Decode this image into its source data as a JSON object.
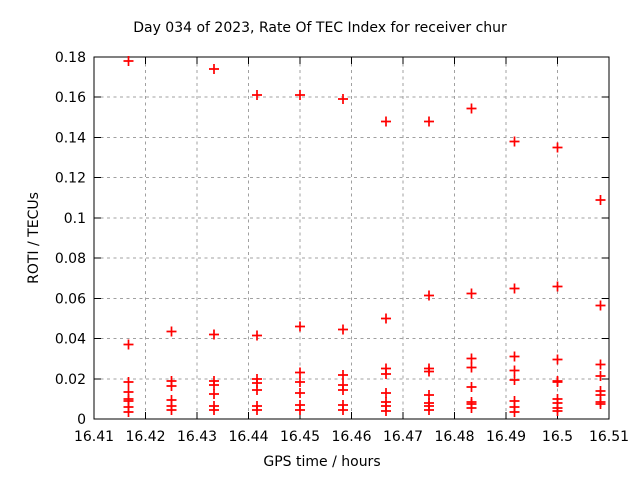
{
  "chart_data": {
    "type": "scatter",
    "title": "Day 034 of 2023, Rate Of TEC Index for receiver chur",
    "xlabel": "GPS time / hours",
    "ylabel": "ROTI / TECUs",
    "xlim": [
      16.41,
      16.51
    ],
    "ylim": [
      0,
      0.18
    ],
    "grid": true,
    "legend": "none",
    "grid_color": "#a0a0a0",
    "marker": {
      "shape": "plus",
      "color": "#ff0000"
    },
    "xticks": {
      "values": [
        16.41,
        16.42,
        16.43,
        16.44,
        16.45,
        16.46,
        16.47,
        16.48,
        16.49,
        16.5,
        16.51
      ],
      "labels": [
        "16.41",
        "16.42",
        "16.43",
        "16.44",
        "16.45",
        "16.46",
        "16.47",
        "16.48",
        "16.49",
        "16.5",
        "16.51"
      ]
    },
    "yticks": {
      "values": [
        0,
        0.02,
        0.04,
        0.06,
        0.08,
        0.1,
        0.12,
        0.14,
        0.16,
        0.18
      ],
      "labels": [
        "0",
        "0.02",
        "0.04",
        "0.06",
        "0.08",
        "0.1",
        "0.12",
        "0.14",
        "0.16",
        "0.18"
      ]
    },
    "series": [
      {
        "name": "ROTI",
        "epochs": [
          {
            "t": 16.416667,
            "values": [
              0.178,
              0.037,
              0.0185,
              0.0135,
              0.01,
              0.009,
              0.006,
              0.0035
            ]
          },
          {
            "t": 16.425,
            "values": [
              0.0435,
              0.019,
              0.0165,
              0.0095,
              0.0065,
              0.0045
            ]
          },
          {
            "t": 16.433333,
            "values": [
              0.174,
              0.042,
              0.019,
              0.017,
              0.0125,
              0.0065,
              0.0045
            ]
          },
          {
            "t": 16.441667,
            "values": [
              0.161,
              0.0415,
              0.02,
              0.018,
              0.0145,
              0.0065,
              0.0045
            ]
          },
          {
            "t": 16.45,
            "values": [
              0.161,
              0.046,
              0.023,
              0.0185,
              0.013,
              0.007,
              0.0045
            ]
          },
          {
            "t": 16.458333,
            "values": [
              0.159,
              0.0445,
              0.022,
              0.017,
              0.0145,
              0.007,
              0.0045
            ]
          },
          {
            "t": 16.466667,
            "values": [
              0.148,
              0.05,
              0.025,
              0.0225,
              0.013,
              0.0085,
              0.0065,
              0.004
            ]
          },
          {
            "t": 16.475,
            "values": [
              0.148,
              0.0615,
              0.025,
              0.0235,
              0.012,
              0.008,
              0.0065,
              0.0045
            ]
          },
          {
            "t": 16.483333,
            "values": [
              0.1545,
              0.0625,
              0.03,
              0.0255,
              0.016,
              0.0085,
              0.0075,
              0.0055
            ]
          },
          {
            "t": 16.491667,
            "values": [
              0.138,
              0.065,
              0.031,
              0.024,
              0.0195,
              0.009,
              0.006,
              0.0035
            ]
          },
          {
            "t": 16.5,
            "values": [
              0.135,
              0.066,
              0.0295,
              0.019,
              0.0185,
              0.01,
              0.008,
              0.0055,
              0.004
            ]
          },
          {
            "t": 16.508333,
            "values": [
              0.109,
              0.0565,
              0.027,
              0.0215,
              0.014,
              0.012,
              0.0085,
              0.0075
            ]
          }
        ]
      }
    ]
  }
}
